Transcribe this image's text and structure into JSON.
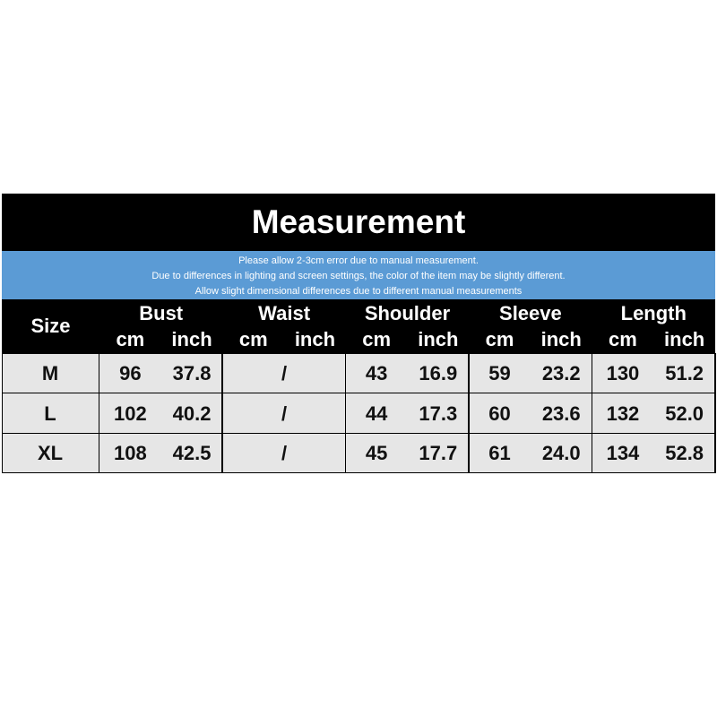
{
  "header": {
    "title": "Measurement",
    "notes": [
      "Please allow 2-3cm error due to manual measurement.",
      "Due to differences in lighting and screen settings, the color of the item may be slightly different.",
      "Allow slight dimensional differences due to different manual measurements"
    ]
  },
  "table": {
    "size_label": "Size",
    "groups": [
      {
        "name": "Bust",
        "units": [
          "cm",
          "inch"
        ]
      },
      {
        "name": "Waist",
        "units": [
          "cm",
          "inch"
        ]
      },
      {
        "name": "Shoulder",
        "units": [
          "cm",
          "inch"
        ]
      },
      {
        "name": "Sleeve",
        "units": [
          "cm",
          "inch"
        ]
      },
      {
        "name": "Length",
        "units": [
          "cm",
          "inch"
        ]
      }
    ],
    "rows": [
      {
        "size": "M",
        "cells": [
          [
            "96",
            "37.8"
          ],
          [
            "/"
          ],
          [
            "43",
            "16.9"
          ],
          [
            "59",
            "23.2"
          ],
          [
            "130",
            "51.2"
          ]
        ]
      },
      {
        "size": "L",
        "cells": [
          [
            "102",
            "40.2"
          ],
          [
            "/"
          ],
          [
            "44",
            "17.3"
          ],
          [
            "60",
            "23.6"
          ],
          [
            "132",
            "52.0"
          ]
        ]
      },
      {
        "size": "XL",
        "cells": [
          [
            "108",
            "42.5"
          ],
          [
            "/"
          ],
          [
            "45",
            "17.7"
          ],
          [
            "61",
            "24.0"
          ],
          [
            "134",
            "52.8"
          ]
        ]
      }
    ]
  }
}
